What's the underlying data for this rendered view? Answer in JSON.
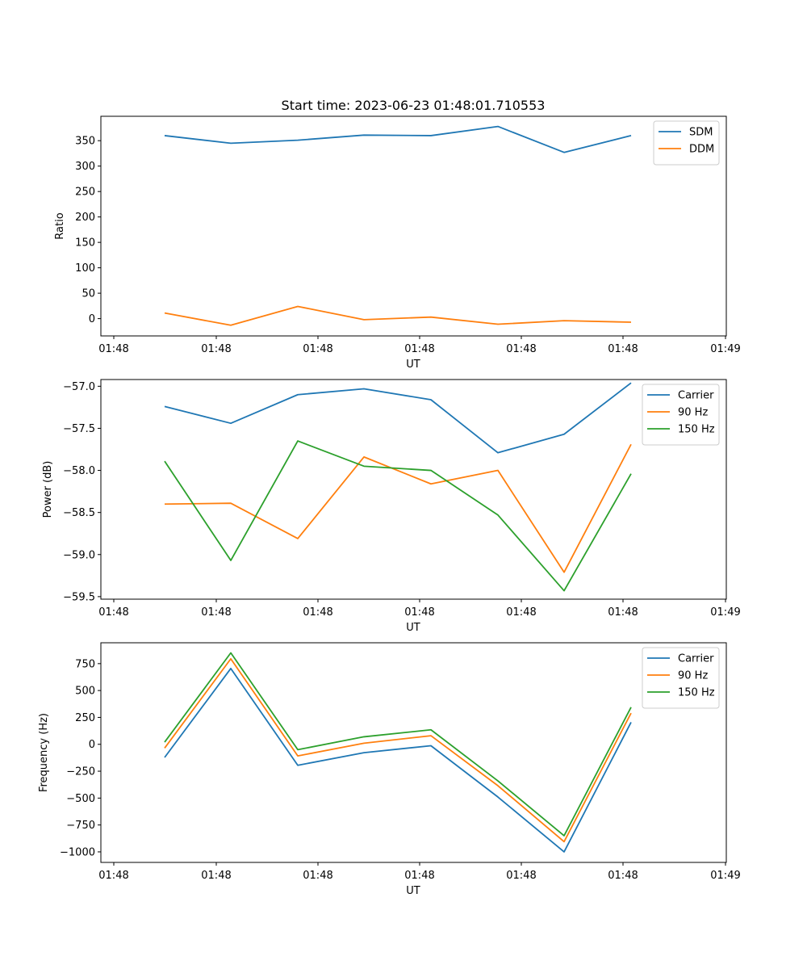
{
  "figure": {
    "title": "Start time: 2023-06-23 01:48:01.710553"
  },
  "chart_data": [
    {
      "type": "line",
      "xlabel": "UT",
      "ylabel": "Ratio",
      "x_tick_labels": [
        "01:48",
        "01:48",
        "01:48",
        "01:48",
        "01:48",
        "01:48",
        "01:49"
      ],
      "y_ticks": [
        0,
        50,
        100,
        150,
        200,
        250,
        300,
        350
      ],
      "y_tick_labels": [
        "0",
        "50",
        "100",
        "150",
        "200",
        "250",
        "300",
        "350"
      ],
      "ylim": [
        -34,
        398
      ],
      "legend": "top-right",
      "series": [
        {
          "name": "SDM",
          "color": "#1f77b4",
          "values": [
            360,
            345,
            351,
            361,
            360,
            378,
            327,
            360
          ]
        },
        {
          "name": "DDM",
          "color": "#ff7f0e",
          "values": [
            11,
            -13,
            24,
            -2,
            3,
            -11,
            -4,
            -7
          ]
        }
      ]
    },
    {
      "type": "line",
      "xlabel": "UT",
      "ylabel": "Power (dB)",
      "x_tick_labels": [
        "01:48",
        "01:48",
        "01:48",
        "01:48",
        "01:48",
        "01:48",
        "01:49"
      ],
      "y_ticks": [
        -59.5,
        -59.0,
        -58.5,
        -58.0,
        -57.5,
        -57.0
      ],
      "y_tick_labels": [
        "−59.5",
        "−59.0",
        "−58.5",
        "−58.0",
        "−57.5",
        "−57.0"
      ],
      "ylim": [
        -59.53,
        -56.92
      ],
      "legend": "top-right",
      "series": [
        {
          "name": "Carrier",
          "color": "#1f77b4",
          "values": [
            -57.24,
            -57.44,
            -57.1,
            -57.03,
            -57.16,
            -57.79,
            -57.57,
            -56.96
          ]
        },
        {
          "name": "90 Hz",
          "color": "#ff7f0e",
          "values": [
            -58.4,
            -58.39,
            -58.81,
            -57.84,
            -58.16,
            -58.0,
            -59.21,
            -57.69
          ]
        },
        {
          "name": "150 Hz",
          "color": "#2ca02c",
          "values": [
            -57.89,
            -59.07,
            -57.65,
            -57.95,
            -58.0,
            -58.53,
            -59.43,
            -58.04
          ]
        }
      ]
    },
    {
      "type": "line",
      "xlabel": "UT",
      "ylabel": "Frequency (Hz)",
      "x_tick_labels": [
        "01:48",
        "01:48",
        "01:48",
        "01:48",
        "01:48",
        "01:48",
        "01:49"
      ],
      "y_ticks": [
        -1000,
        -750,
        -500,
        -250,
        0,
        250,
        500,
        750
      ],
      "y_tick_labels": [
        "−1000",
        "−750",
        "−500",
        "−250",
        "0",
        "250",
        "500",
        "750"
      ],
      "ylim": [
        -1098,
        944
      ],
      "legend": "top-right",
      "series": [
        {
          "name": "Carrier",
          "color": "#1f77b4",
          "values": [
            -122,
            705,
            -195,
            -78,
            -13,
            -490,
            -1000,
            205
          ]
        },
        {
          "name": "90 Hz",
          "color": "#ff7f0e",
          "values": [
            -35,
            795,
            -108,
            10,
            80,
            -385,
            -905,
            290
          ]
        },
        {
          "name": "150 Hz",
          "color": "#2ca02c",
          "values": [
            20,
            850,
            -50,
            70,
            135,
            -340,
            -850,
            345
          ]
        }
      ]
    }
  ]
}
